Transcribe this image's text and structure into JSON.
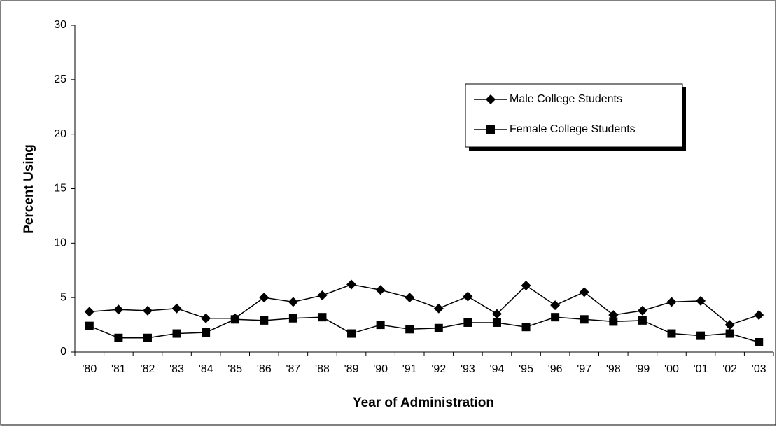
{
  "chart_data": {
    "type": "line",
    "x_label": "Year of Administration",
    "y_label": "Percent Using",
    "categories": [
      "'80",
      "'81",
      "'82",
      "'83",
      "'84",
      "'85",
      "'86",
      "'87",
      "'88",
      "'89",
      "'90",
      "'91",
      "'92",
      "'93",
      "'94",
      "'95",
      "'96",
      "'97",
      "'98",
      "'99",
      "'00",
      "'01",
      "'02",
      "'03"
    ],
    "series": [
      {
        "name": "Male College Students",
        "color": "#000000",
        "marker": "diamond",
        "values": [
          3.7,
          3.9,
          3.8,
          4.0,
          3.1,
          3.1,
          5.0,
          4.6,
          5.2,
          6.2,
          5.7,
          5.0,
          4.0,
          5.1,
          3.5,
          6.1,
          4.3,
          5.5,
          3.4,
          3.8,
          4.6,
          4.7,
          2.5,
          3.4
        ]
      },
      {
        "name": "Female College Students",
        "color": "#000000",
        "marker": "square",
        "values": [
          2.4,
          1.3,
          1.3,
          1.7,
          1.8,
          3.0,
          2.9,
          3.1,
          3.2,
          1.7,
          2.5,
          2.1,
          2.2,
          2.7,
          2.7,
          2.3,
          3.2,
          3.0,
          2.8,
          2.9,
          1.7,
          1.5,
          1.7,
          0.9
        ]
      }
    ],
    "ylim": [
      0,
      30
    ],
    "yticks": [
      0,
      5,
      10,
      15,
      20,
      25,
      30
    ],
    "grid": false,
    "legend": "upper right"
  }
}
